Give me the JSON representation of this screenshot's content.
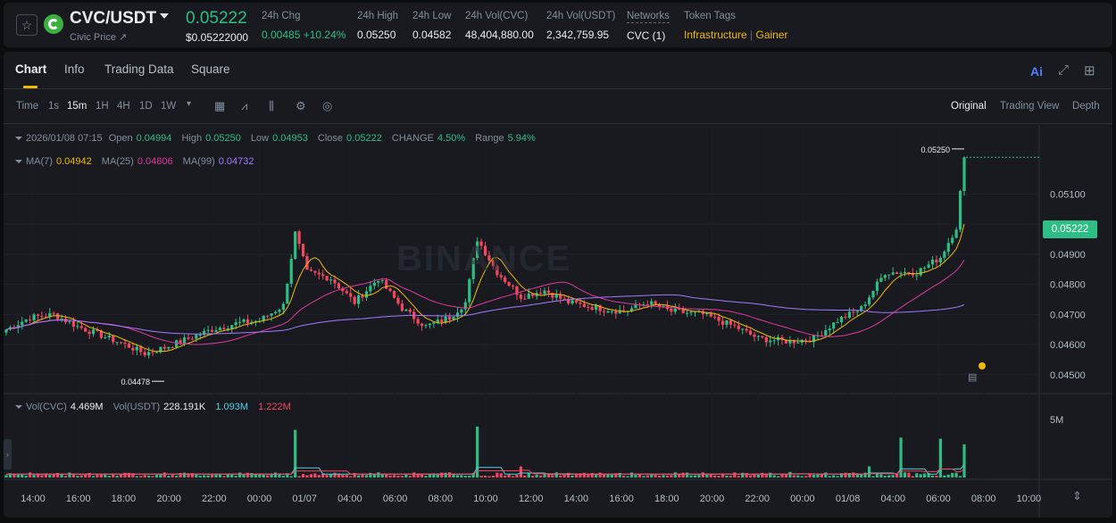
{
  "header": {
    "pair": "CVC/USDT",
    "sub_label": "Civic Price ↗",
    "last_price": "0.05222",
    "usd_price": "$0.05222000",
    "stats": [
      {
        "label": "24h Chg",
        "value": "0.00485 +10.24%"
      },
      {
        "label": "24h High",
        "value": "0.05250"
      },
      {
        "label": "24h Low",
        "value": "0.04582"
      },
      {
        "label": "24h Vol(CVC)",
        "value": "48,404,880.00"
      },
      {
        "label": "24h Vol(USDT)",
        "value": "2,342,759.95"
      },
      {
        "label": "Networks",
        "value": "CVC (1)"
      },
      {
        "label": "Token Tags",
        "value": ""
      }
    ],
    "tags": [
      "Infrastructure",
      "Gainer"
    ],
    "colors": {
      "up": "#2ebd85",
      "down": "#f6465d",
      "accent": "#f0b90b"
    }
  },
  "tabs": [
    "Chart",
    "Info",
    "Trading Data",
    "Square"
  ],
  "tab_icons": [
    "ai-icon",
    "expand-icon",
    "layout-icon"
  ],
  "toolbar": {
    "intervals": [
      "Time",
      "1s",
      "15m",
      "1H",
      "4H",
      "1D",
      "1W"
    ],
    "active_interval": "15m",
    "tools": [
      "calendar-icon",
      "indicator-icon",
      "candle-type-icon",
      "settings-icon",
      "target-icon"
    ],
    "views": [
      "Original",
      "Trading View",
      "Depth"
    ],
    "active_view": "Original"
  },
  "ohlc": {
    "date": "2026/01/08 07:15",
    "open_label": "Open",
    "open": "0.04994",
    "high_label": "High",
    "high": "0.05250",
    "low_label": "Low",
    "low": "0.04953",
    "close_label": "Close",
    "close": "0.05222",
    "change_label": "CHANGE",
    "change": "4.50%",
    "range_label": "Range",
    "range": "5.94%"
  },
  "ma": {
    "ma7_label": "MA(7)",
    "ma7": "0.04942",
    "ma7_color": "#f0b90b",
    "ma25_label": "MA(25)",
    "ma25": "0.04806",
    "ma25_color": "#e0399e",
    "ma99_label": "MA(99)",
    "ma99": "0.04732",
    "ma99_color": "#a479ff"
  },
  "volume": {
    "vol_cvc_label": "Vol(CVC)",
    "vol_cvc": "4.469M",
    "vol_usdt_label": "Vol(USDT)",
    "vol_usdt": "228.191K",
    "ma1": "1.093M",
    "ma2": "1.222M"
  },
  "watermark": "BINANCE",
  "price_tag": "0.05222",
  "chart_data": {
    "type": "candlestick",
    "y_ticks": [
      "0.05100",
      "0.05000",
      "0.04900",
      "0.04800",
      "0.04700",
      "0.04600",
      "0.04500"
    ],
    "ylim": [
      0.0444,
      0.053
    ],
    "high_label": "0.05250",
    "low_label": "0.04478",
    "vol_tick": "5M",
    "x_ticks": [
      "14:00",
      "16:00",
      "18:00",
      "20:00",
      "22:00",
      "00:00",
      "01/07",
      "04:00",
      "06:00",
      "08:00",
      "10:00",
      "12:00",
      "14:00",
      "16:00",
      "18:00",
      "20:00",
      "22:00",
      "00:00",
      "01/08",
      "04:00",
      "06:00",
      "08:00",
      "10:00"
    ],
    "anchors": [
      [
        0,
        0.0465
      ],
      [
        6,
        0.0469
      ],
      [
        12,
        0.047
      ],
      [
        18,
        0.0466
      ],
      [
        24,
        0.0463
      ],
      [
        30,
        0.046
      ],
      [
        35,
        0.0457
      ],
      [
        40,
        0.0459
      ],
      [
        46,
        0.0462
      ],
      [
        52,
        0.0465
      ],
      [
        58,
        0.0467
      ],
      [
        64,
        0.0468
      ],
      [
        70,
        0.0473
      ],
      [
        73,
        0.0497
      ],
      [
        76,
        0.0484
      ],
      [
        82,
        0.0482
      ],
      [
        88,
        0.0474
      ],
      [
        94,
        0.0482
      ],
      [
        100,
        0.0472
      ],
      [
        106,
        0.0466
      ],
      [
        112,
        0.0469
      ],
      [
        116,
        0.0474
      ],
      [
        119,
        0.0495
      ],
      [
        124,
        0.0484
      ],
      [
        130,
        0.0476
      ],
      [
        136,
        0.0478
      ],
      [
        142,
        0.0474
      ],
      [
        150,
        0.0472
      ],
      [
        156,
        0.0471
      ],
      [
        162,
        0.0474
      ],
      [
        168,
        0.0471
      ],
      [
        176,
        0.047
      ],
      [
        184,
        0.0466
      ],
      [
        190,
        0.0462
      ],
      [
        198,
        0.0461
      ],
      [
        204,
        0.0462
      ],
      [
        210,
        0.0468
      ],
      [
        216,
        0.0472
      ],
      [
        222,
        0.0484
      ],
      [
        230,
        0.0484
      ],
      [
        236,
        0.0489
      ],
      [
        240,
        0.0499
      ],
      [
        242,
        0.0522
      ]
    ],
    "vol_spikes": [
      [
        73,
        4.3
      ],
      [
        119,
        4.6
      ],
      [
        130,
        1.0
      ],
      [
        198,
        0.5
      ],
      [
        218,
        1.0
      ],
      [
        226,
        3.6
      ],
      [
        236,
        3.5
      ],
      [
        242,
        3.0
      ]
    ]
  }
}
